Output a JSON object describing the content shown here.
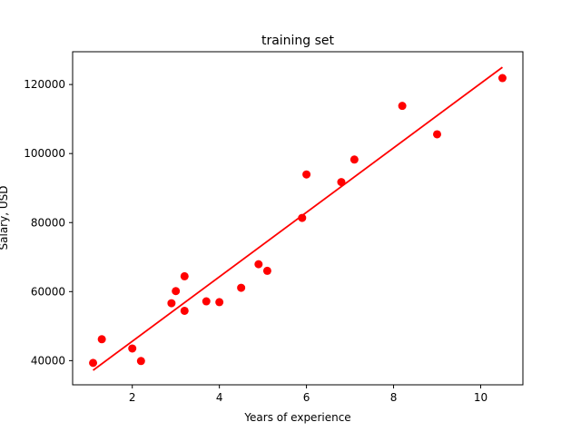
{
  "chart_data": {
    "type": "scatter",
    "title": "training set",
    "xlabel": "Years of experience",
    "ylabel": "Salary, USD",
    "xlim": [
      0.63,
      10.97
    ],
    "ylim": [
      33000,
      129500
    ],
    "xticks": [
      2,
      4,
      6,
      8,
      10
    ],
    "yticks": [
      40000,
      60000,
      80000,
      100000,
      120000
    ],
    "grid": false,
    "colors": {
      "points": "#ff0000",
      "line": "#ff0000",
      "axes": "#000000"
    },
    "points": [
      {
        "x": 1.1,
        "y": 39343
      },
      {
        "x": 1.3,
        "y": 46205
      },
      {
        "x": 2.0,
        "y": 43525
      },
      {
        "x": 2.2,
        "y": 39891
      },
      {
        "x": 2.9,
        "y": 56642
      },
      {
        "x": 3.0,
        "y": 60150
      },
      {
        "x": 3.2,
        "y": 54445
      },
      {
        "x": 3.2,
        "y": 64445
      },
      {
        "x": 3.7,
        "y": 57189
      },
      {
        "x": 4.0,
        "y": 56957
      },
      {
        "x": 4.5,
        "y": 61111
      },
      {
        "x": 4.9,
        "y": 67938
      },
      {
        "x": 5.1,
        "y": 66029
      },
      {
        "x": 5.9,
        "y": 81363
      },
      {
        "x": 6.0,
        "y": 93940
      },
      {
        "x": 6.8,
        "y": 91738
      },
      {
        "x": 7.1,
        "y": 98273
      },
      {
        "x": 8.2,
        "y": 113812
      },
      {
        "x": 9.0,
        "y": 105582
      },
      {
        "x": 10.5,
        "y": 121872
      }
    ],
    "regression_line": {
      "x": [
        1.1,
        10.5
      ],
      "y": [
        37200,
        125000
      ]
    }
  }
}
